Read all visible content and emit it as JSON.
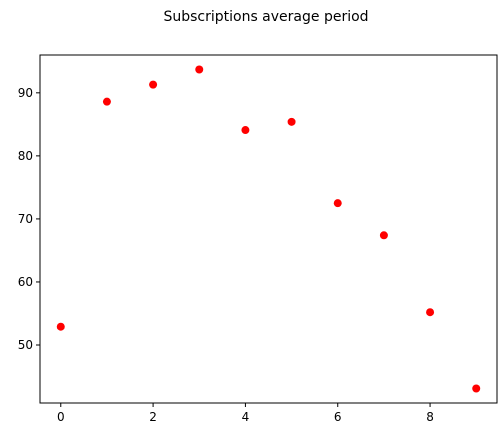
{
  "chart_data": {
    "type": "scatter",
    "title": "Subscriptions average period",
    "xlabel": "",
    "ylabel": "",
    "x": [
      0,
      1,
      2,
      3,
      4,
      5,
      6,
      7,
      8,
      9
    ],
    "y": [
      52.9,
      88.6,
      91.3,
      93.7,
      84.1,
      85.4,
      72.5,
      67.4,
      55.2,
      43.1
    ],
    "xlim": [
      -0.45,
      9.45
    ],
    "ylim": [
      40.8,
      96.0
    ],
    "xticks": [
      0,
      2,
      4,
      6,
      8
    ],
    "yticks": [
      50,
      60,
      70,
      80,
      90
    ],
    "marker_color": "#ff0000",
    "grid": false,
    "legend": "none"
  }
}
